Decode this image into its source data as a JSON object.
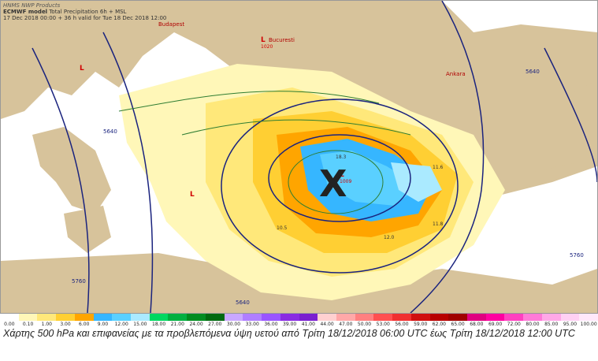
{
  "header": {
    "line1": "HNMS NWP Products",
    "model_bold": "ECMWF model",
    "line2_rest": " Total Precipitation 6h + MSL",
    "line3": "17 Dec 2018 00:00 + 36 h valid for Tue 18 Dec 2018 12:00"
  },
  "map_labels": {
    "budapest": "Budapest",
    "bucuresti": "Bucuresti",
    "ankara": "Ankara",
    "low_symbol": "L",
    "low_value": "1020",
    "low_athens": "1009",
    "center_mark": "X",
    "z5640": "5640",
    "z5760": "5760",
    "z5640b": "5640",
    "z5760b": "5760",
    "p1": "10.5",
    "p2": "11.6",
    "p3": "11.8",
    "p4": "18.3",
    "p5": "12.0"
  },
  "legend": {
    "values": [
      "0.00",
      "0.10",
      "1.00",
      "3.00",
      "6.00",
      "9.00",
      "12.00",
      "15.00",
      "18.00",
      "21.00",
      "24.00",
      "27.00",
      "30.00",
      "33.00",
      "36.00",
      "39.00",
      "41.00",
      "44.00",
      "47.00",
      "50.00",
      "53.00",
      "56.00",
      "59.00",
      "62.00",
      "65.00",
      "68.00",
      "69.00",
      "72.00",
      "80.00",
      "85.00",
      "95.00",
      "100.00"
    ],
    "colors": [
      "#ffffff",
      "#fff7b8",
      "#ffe87a",
      "#ffcf33",
      "#ffa500",
      "#36b6ff",
      "#5ad0ff",
      "#aaeaff",
      "#00d860",
      "#00b040",
      "#008c20",
      "#006a10",
      "#c9a7ff",
      "#b07eff",
      "#9a55ff",
      "#8a2be2",
      "#7a1fd0",
      "#ffd0d0",
      "#ffa8a8",
      "#ff8080",
      "#ff5050",
      "#f03030",
      "#d01010",
      "#b80000",
      "#a00000",
      "#e00080",
      "#ff00a0",
      "#ff40c0",
      "#ff7ad8",
      "#ffa8e8",
      "#ffd0f4",
      "#ffe8fa"
    ]
  },
  "caption": "Χάρτης 500 hPa και επιφανείας με τα προβλεπόμενα ύψη υετού από Τρίτη 18/12/2018 06:00 UTC έως Τρίτη 18/12/2018 12:00 UTC"
}
